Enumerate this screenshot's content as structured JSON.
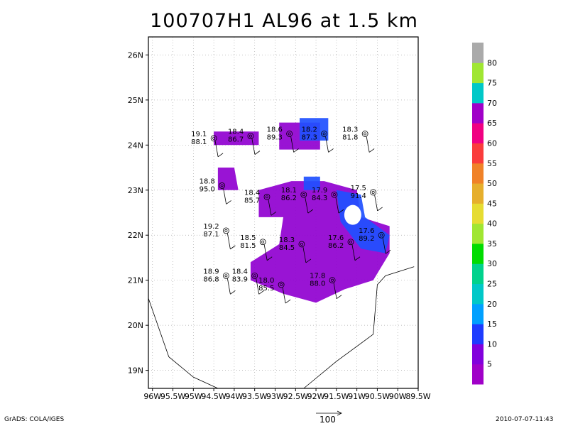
{
  "title": "100707H1 AL96 at 1.5 km",
  "lon_labels": [
    "96W",
    "95.5W",
    "95W",
    "94.5W",
    "94W",
    "93.5W",
    "93W",
    "92.5W",
    "92W",
    "91.5W",
    "91W",
    "90.5W",
    "90W",
    "89.5W"
  ],
  "lon_values": [
    -96,
    -95.5,
    -95,
    -94.5,
    -94,
    -93.5,
    -93,
    -92.5,
    -92,
    -91.5,
    -91,
    -90.5,
    -90,
    -89.5
  ],
  "lat_labels": [
    "19N",
    "20N",
    "21N",
    "22N",
    "23N",
    "24N",
    "25N",
    "26N"
  ],
  "lat_values": [
    19,
    20,
    21,
    22,
    23,
    24,
    25,
    26
  ],
  "colorbar": {
    "labels": [
      "5",
      "10",
      "15",
      "20",
      "25",
      "30",
      "35",
      "40",
      "45",
      "50",
      "55",
      "60",
      "65",
      "70",
      "75",
      "80"
    ],
    "colors": [
      "#a000c8",
      "#8200dc",
      "#1e3cff",
      "#00a0ff",
      "#00c8c8",
      "#00d28c",
      "#00dc00",
      "#a0e632",
      "#e6dc32",
      "#e6af2d",
      "#f08228",
      "#fa3c3c",
      "#f00082",
      "#a000c8",
      "#00c8c8",
      "#a0e632",
      "#aaaaaa"
    ]
  },
  "stations": [
    {
      "lon": -94.5,
      "lat": 24.15,
      "t": "19.1",
      "p": "88.1"
    },
    {
      "lon": -93.6,
      "lat": 24.2,
      "t": "18.4",
      "p": "86.7"
    },
    {
      "lon": -92.65,
      "lat": 24.25,
      "t": "18.6",
      "p": "89.3"
    },
    {
      "lon": -91.8,
      "lat": 24.25,
      "t": "18.2",
      "p": "87.3"
    },
    {
      "lon": -90.8,
      "lat": 24.25,
      "t": "18.3",
      "p": "81.8"
    },
    {
      "lon": -94.3,
      "lat": 23.1,
      "t": "18.8",
      "p": "95.0"
    },
    {
      "lon": -93.2,
      "lat": 22.85,
      "t": "18.4",
      "p": "85.7"
    },
    {
      "lon": -92.3,
      "lat": 22.9,
      "t": "18.1",
      "p": "86.2"
    },
    {
      "lon": -91.55,
      "lat": 22.9,
      "t": "17.9",
      "p": "84.3"
    },
    {
      "lon": -90.6,
      "lat": 22.95,
      "t": "17.5",
      "p": "91.4"
    },
    {
      "lon": -94.2,
      "lat": 22.1,
      "t": "19.2",
      "p": "87.1"
    },
    {
      "lon": -93.3,
      "lat": 21.85,
      "t": "18.5",
      "p": "81.5"
    },
    {
      "lon": -92.35,
      "lat": 21.8,
      "t": "18.3",
      "p": "84.5"
    },
    {
      "lon": -91.15,
      "lat": 21.85,
      "t": "17.6",
      "p": "86.2"
    },
    {
      "lon": -90.4,
      "lat": 22.0,
      "t": "17.6",
      "p": "89.2"
    },
    {
      "lon": -94.2,
      "lat": 21.1,
      "t": "18.9",
      "p": "86.8"
    },
    {
      "lon": -93.5,
      "lat": 21.1,
      "t": "18.4",
      "p": "83.9"
    },
    {
      "lon": -92.85,
      "lat": 20.9,
      "t": "18.0",
      "p": "85.5"
    },
    {
      "lon": -91.6,
      "lat": 21.0,
      "t": "17.8",
      "p": "88.0"
    }
  ],
  "footer": {
    "left": "GrADS: COLA/IGES",
    "right": "2010-07-07-11:43",
    "vector_label": "100"
  }
}
